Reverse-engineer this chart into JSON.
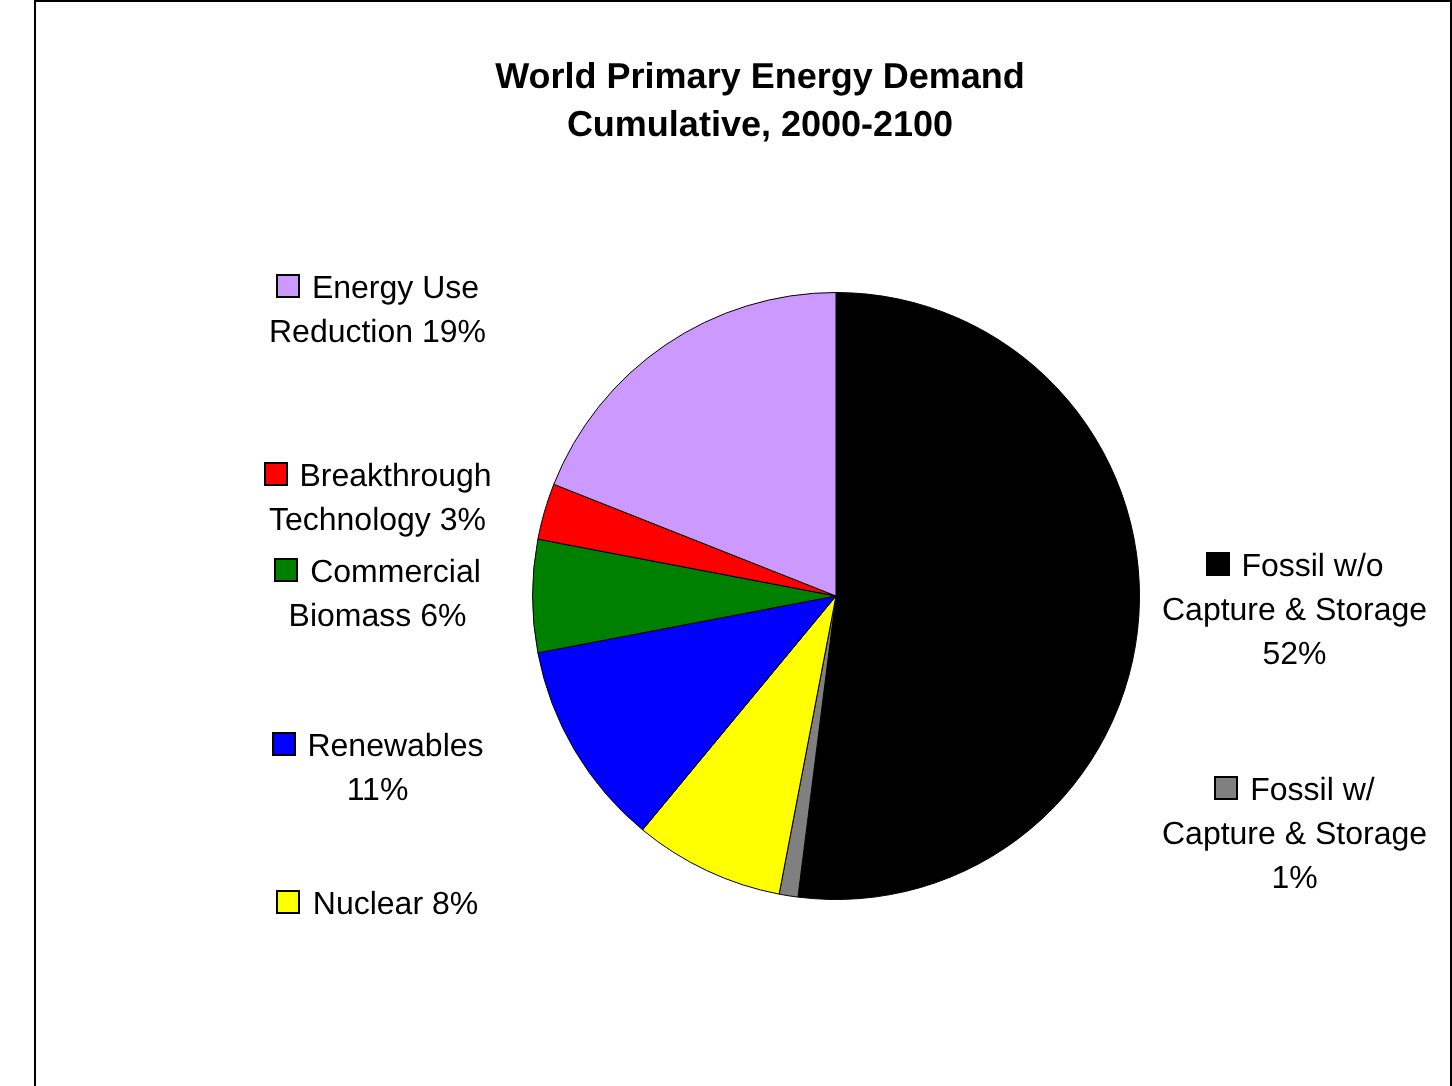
{
  "chart_data": {
    "type": "pie",
    "title": "World Primary Energy Demand",
    "subtitle": "Cumulative, 2000-2100",
    "categories": [
      "Fossil w/o Capture & Storage",
      "Fossil w/ Capture & Storage",
      "Nuclear",
      "Renewables",
      "Commercial Biomass",
      "Breakthrough Technology",
      "Energy Use Reduction"
    ],
    "values": [
      52,
      1,
      8,
      11,
      6,
      3,
      19
    ],
    "value_labels": [
      "52%",
      "1%",
      "8%",
      "11%",
      "6%",
      "3%",
      "19%"
    ],
    "colors": [
      "#000000",
      "#808080",
      "#ffff00",
      "#0000ff",
      "#008000",
      "#ff0000",
      "#cc99ff"
    ],
    "legend": "left"
  }
}
